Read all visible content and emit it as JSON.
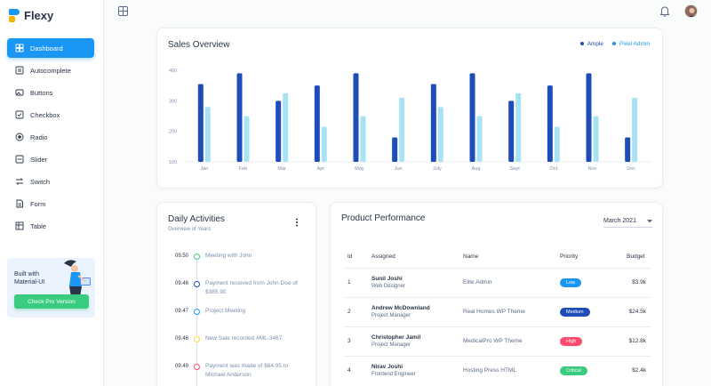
{
  "app": {
    "name": "Flexy"
  },
  "sidebar": {
    "items": [
      {
        "label": "Dashboard",
        "icon": "dashboard-icon",
        "active": true
      },
      {
        "label": "Autocomplete",
        "icon": "autocomplete-icon"
      },
      {
        "label": "Buttons",
        "icon": "buttons-icon"
      },
      {
        "label": "Checkbox",
        "icon": "checkbox-icon"
      },
      {
        "label": "Radio",
        "icon": "radio-icon"
      },
      {
        "label": "Slider",
        "icon": "slider-icon"
      },
      {
        "label": "Switch",
        "icon": "switch-icon"
      },
      {
        "label": "Form",
        "icon": "form-icon"
      },
      {
        "label": "Table",
        "icon": "table-icon"
      }
    ],
    "promo": {
      "title": "Built with Material-UI",
      "button": "Check Pro Version"
    }
  },
  "colors": {
    "primary": "#1a97f5",
    "series1": "#1e4db7",
    "series2": "#a7e3f4",
    "success": "#39cb7f",
    "warning": "#fdd43f",
    "error": "#fc4b6c"
  },
  "sales": {
    "title": "Sales Overview",
    "legend": [
      "Ample",
      "Pixel Admin"
    ]
  },
  "chart_data": {
    "type": "bar",
    "categories": [
      "Jan",
      "Feb",
      "Mar",
      "Apr",
      "May",
      "Jun",
      "July",
      "Aug",
      "Sept",
      "Oct",
      "Nov",
      "Dec"
    ],
    "series": [
      {
        "name": "Ample",
        "values": [
          355,
          390,
          300,
          350,
          390,
          180,
          355,
          390,
          300,
          350,
          390,
          180
        ]
      },
      {
        "name": "Pixel Admin",
        "values": [
          280,
          250,
          325,
          215,
          250,
          310,
          280,
          250,
          325,
          215,
          250,
          310
        ]
      }
    ],
    "yticks": [
      "100",
      "200",
      "300",
      "400"
    ],
    "ylim": [
      100,
      400
    ],
    "grid": false
  },
  "daily": {
    "title": "Daily Activities",
    "subtitle": "Overview of Years",
    "items": [
      {
        "time": "09.50",
        "text": "Meeting with John",
        "color": "#39cb7f"
      },
      {
        "time": "09.46",
        "text": "Payment received from John Doe of $385.90",
        "color": "#1e4db7"
      },
      {
        "time": "09.47",
        "text": "Project Meeting",
        "color": "#1a97f5"
      },
      {
        "time": "09.46",
        "text": "New Sale recorded #ML-3467",
        "color": "#fdd43f"
      },
      {
        "time": "09.49",
        "text": "Payment was made of $64.95 to Michael Anderson",
        "color": "#fc4b6c"
      }
    ]
  },
  "performance": {
    "title": "Product Performance",
    "selected_month": "March 2021",
    "headers": {
      "id": "Id",
      "assigned": "Assigned",
      "name": "Name",
      "priority": "Priority",
      "budget": "Budget"
    },
    "rows": [
      {
        "id": "1",
        "person": "Sunil Joshi",
        "role": "Web Designer",
        "name": "Elite Admin",
        "priority": "Low",
        "color": "#1a97f5",
        "budget": "$3.9k"
      },
      {
        "id": "2",
        "person": "Andrew McDownland",
        "role": "Project Manager",
        "name": "Real Homes WP Theme",
        "priority": "Medium",
        "color": "#1e4db7",
        "budget": "$24.5k"
      },
      {
        "id": "3",
        "person": "Christopher Jamil",
        "role": "Project Manager",
        "name": "MedicalPro WP Theme",
        "priority": "High",
        "color": "#fc4b6c",
        "budget": "$12.8k"
      },
      {
        "id": "4",
        "person": "Nirav Joshi",
        "role": "Frontend Engineer",
        "name": "Hosting Press HTML",
        "priority": "Critical",
        "color": "#39cb7f",
        "budget": "$2.4k"
      }
    ]
  }
}
